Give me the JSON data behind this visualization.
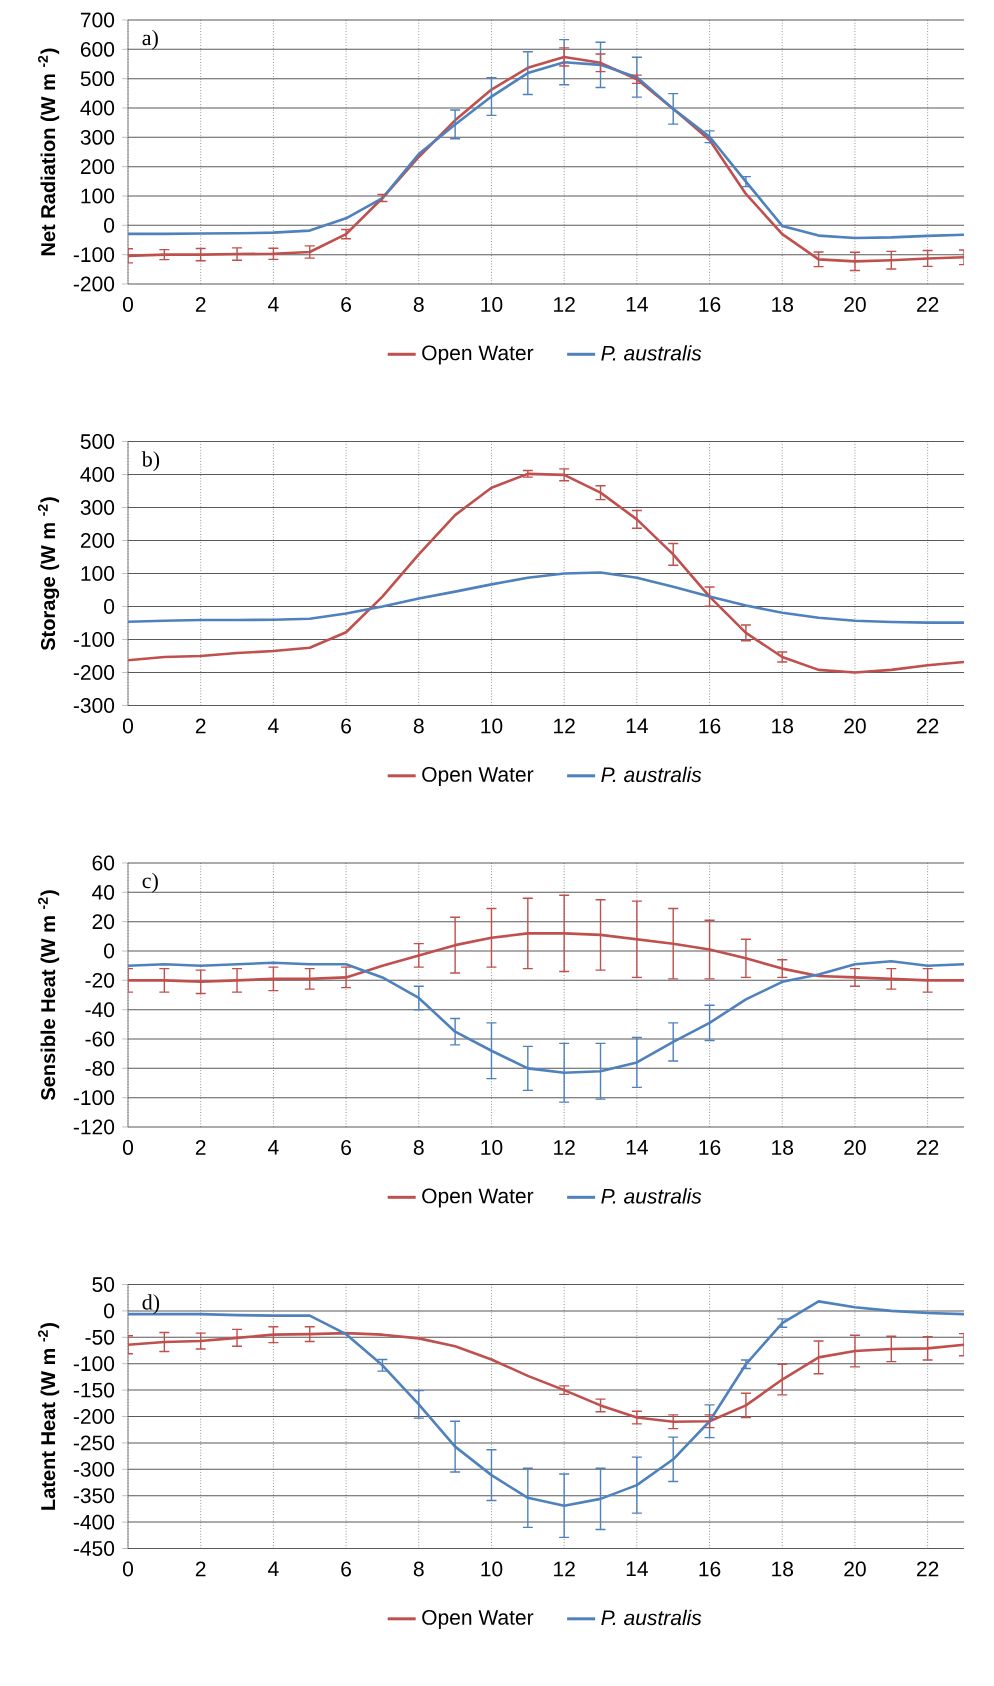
{
  "chart_data": [
    {
      "type": "line",
      "ylabel": "Net Radiation (W m $^{-2}$)",
      "annotations": [
        "a)"
      ],
      "x": [
        0,
        1,
        2,
        3,
        4,
        5,
        6,
        7,
        8,
        9,
        10,
        11,
        12,
        13,
        14,
        15,
        16,
        17,
        18,
        19,
        20,
        21,
        22,
        23
      ],
      "xlim": [
        0,
        23
      ],
      "xticks": [
        0,
        2,
        4,
        6,
        8,
        10,
        12,
        14,
        16,
        18,
        20,
        22
      ],
      "ylim": [
        -200,
        700
      ],
      "yticks": [
        -200,
        -100,
        0,
        100,
        200,
        300,
        400,
        500,
        600,
        700
      ],
      "grid": true,
      "legend": "bottom",
      "series": [
        {
          "name": "Open Water",
          "color": "#c0504d",
          "values": [
            -104,
            -100,
            -100,
            -98,
            -97,
            -91,
            -30,
            93,
            233,
            358,
            463,
            537,
            574,
            554,
            498,
            397,
            291,
            107,
            -30,
            -116,
            -123,
            -119,
            -113,
            -109
          ],
          "errors": [
            24,
            17,
            21,
            21,
            19,
            21,
            16,
            12,
            null,
            null,
            null,
            null,
            31,
            30,
            14,
            null,
            null,
            null,
            null,
            25,
            31,
            30,
            27,
            25
          ]
        },
        {
          "name": "*P. australis*",
          "color": "#4f81bd",
          "values": [
            -29,
            -29,
            -28,
            -27,
            -25,
            -18,
            24,
            93,
            243,
            344,
            439,
            519,
            556,
            547,
            505,
            397,
            302,
            149,
            -2,
            -35,
            -43,
            -41,
            -36,
            -32
          ],
          "errors": [
            null,
            null,
            null,
            null,
            null,
            null,
            null,
            null,
            null,
            49,
            64,
            73,
            77,
            77,
            68,
            52,
            20,
            17,
            null,
            null,
            null,
            null,
            null,
            null
          ]
        }
      ]
    },
    {
      "type": "line",
      "ylabel": "Storage (W m $^{-2}$)",
      "annotations": [
        "b)"
      ],
      "x": [
        0,
        1,
        2,
        3,
        4,
        5,
        6,
        7,
        8,
        9,
        10,
        11,
        12,
        13,
        14,
        15,
        16,
        17,
        18,
        19,
        20,
        21,
        22,
        23
      ],
      "xlim": [
        0,
        23
      ],
      "xticks": [
        0,
        2,
        4,
        6,
        8,
        10,
        12,
        14,
        16,
        18,
        20,
        22
      ],
      "ylim": [
        -300,
        500
      ],
      "yticks": [
        -300,
        -200,
        -100,
        0,
        100,
        200,
        300,
        400,
        500
      ],
      "grid": true,
      "legend": "bottom",
      "series": [
        {
          "name": "Open Water",
          "color": "#c0504d",
          "values": [
            -163,
            -153,
            -150,
            -141,
            -135,
            -125,
            -78,
            30,
            158,
            277,
            360,
            402,
            399,
            345,
            264,
            158,
            30,
            -80,
            -153,
            -192,
            -200,
            -192,
            -178,
            -168
          ],
          "errors": [
            null,
            null,
            null,
            null,
            null,
            null,
            null,
            null,
            null,
            null,
            null,
            10,
            18,
            21,
            27,
            33,
            29,
            24,
            15,
            null,
            null,
            null,
            null,
            null
          ]
        },
        {
          "name": "*P. australis*",
          "color": "#4f81bd",
          "values": [
            -46,
            -43,
            -41,
            -41,
            -40,
            -37,
            -21,
            0,
            24,
            45,
            67,
            87,
            100,
            103,
            87,
            60,
            30,
            3,
            -19,
            -34,
            -43,
            -47,
            -49,
            -49
          ]
        }
      ]
    },
    {
      "type": "line",
      "ylabel": "Sensible Heat (W m $^{-2}$)",
      "annotations": [
        "c)"
      ],
      "x": [
        0,
        1,
        2,
        3,
        4,
        5,
        6,
        7,
        8,
        9,
        10,
        11,
        12,
        13,
        14,
        15,
        16,
        17,
        18,
        19,
        20,
        21,
        22,
        23
      ],
      "xlim": [
        0,
        23
      ],
      "xticks": [
        0,
        2,
        4,
        6,
        8,
        10,
        12,
        14,
        16,
        18,
        20,
        22
      ],
      "ylim": [
        -120,
        60
      ],
      "yticks": [
        -120,
        -100,
        -80,
        -60,
        -40,
        -20,
        0,
        20,
        40,
        60
      ],
      "grid": true,
      "legend": "bottom",
      "series": [
        {
          "name": "Open Water",
          "color": "#c0504d",
          "values": [
            -20,
            -20,
            -21,
            -20,
            -19,
            -19,
            -18,
            -10,
            -3,
            4,
            9,
            12,
            12,
            11,
            8,
            5,
            1,
            -5,
            -12,
            -17,
            -18,
            -19,
            -20,
            -20
          ],
          "errors": [
            8,
            8,
            8,
            8,
            8,
            7,
            7,
            null,
            8,
            19,
            20,
            24,
            26,
            24,
            26,
            24,
            20,
            13,
            6,
            null,
            6,
            7,
            8,
            null
          ]
        },
        {
          "name": "*P. australis*",
          "color": "#4f81bd",
          "values": [
            -10,
            -9,
            -10,
            -9,
            -8,
            -9,
            -9,
            -18,
            -32,
            -55,
            -68,
            -80,
            -83,
            -82,
            -76,
            -62,
            -49,
            -33,
            -21,
            -16,
            -9,
            -7,
            -10,
            -9
          ],
          "errors": [
            null,
            null,
            null,
            null,
            null,
            null,
            null,
            null,
            8,
            9,
            19,
            15,
            20,
            19,
            17,
            13,
            12,
            null,
            null,
            null,
            null,
            null,
            null,
            null
          ]
        }
      ]
    },
    {
      "type": "line",
      "ylabel": "Latent Heat (W m $^{-2}$)",
      "annotations": [
        "d)"
      ],
      "x": [
        0,
        1,
        2,
        3,
        4,
        5,
        6,
        7,
        8,
        9,
        10,
        11,
        12,
        13,
        14,
        15,
        16,
        17,
        18,
        19,
        20,
        21,
        22,
        23
      ],
      "xlim": [
        0,
        23
      ],
      "xticks": [
        0,
        2,
        4,
        6,
        8,
        10,
        12,
        14,
        16,
        18,
        20,
        22
      ],
      "ylim": [
        -450,
        50
      ],
      "yticks": [
        -450,
        -400,
        -350,
        -300,
        -250,
        -200,
        -150,
        -100,
        -50,
        0,
        50
      ],
      "grid": true,
      "legend": "bottom",
      "series": [
        {
          "name": "Open Water",
          "color": "#c0504d",
          "values": [
            -64,
            -59,
            -57,
            -51,
            -45,
            -44,
            -42,
            -45,
            -52,
            -67,
            -92,
            -123,
            -150,
            -179,
            -202,
            -210,
            -209,
            -179,
            -130,
            -88,
            -76,
            -72,
            -71,
            -64
          ],
          "errors": [
            17,
            18,
            15,
            16,
            15,
            14,
            null,
            null,
            null,
            null,
            null,
            null,
            8,
            12,
            12,
            13,
            12,
            23,
            29,
            31,
            30,
            24,
            22,
            21
          ]
        },
        {
          "name": "*P. australis*",
          "color": "#4f81bd",
          "values": [
            -6,
            -6,
            -6,
            -8,
            -9,
            -9,
            -44,
            -103,
            -177,
            -257,
            -311,
            -354,
            -369,
            -356,
            -330,
            -281,
            -209,
            -101,
            -23,
            18,
            7,
            0,
            -4,
            -6
          ],
          "errors": [
            null,
            null,
            null,
            null,
            null,
            null,
            null,
            11,
            26,
            48,
            48,
            56,
            60,
            58,
            53,
            42,
            31,
            8,
            8,
            null,
            null,
            null,
            null,
            null
          ]
        }
      ]
    }
  ]
}
